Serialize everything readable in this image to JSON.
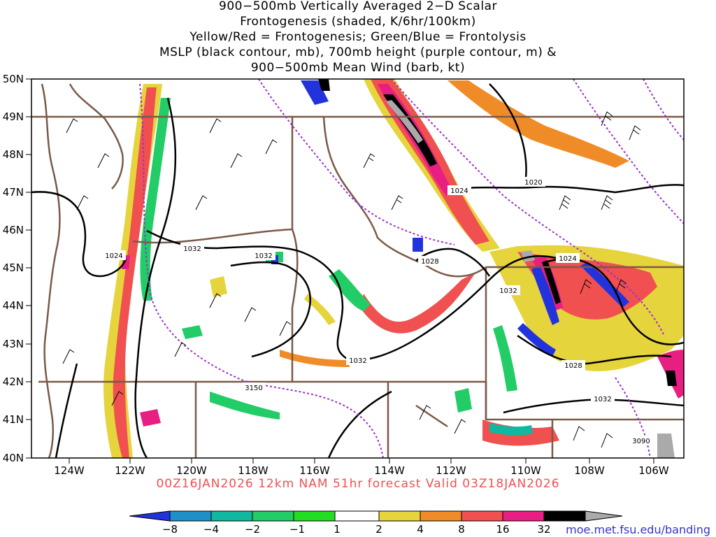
{
  "title_lines": [
    "900−500mb Vertically Averaged 2−D Scalar",
    "Frontogenesis (shaded, K/6hr/100km)",
    "Yellow/Red = Frontogenesis;  Green/Blue = Frontolysis",
    "MSLP (black contour, mb), 700mb height (purple contour, m) &",
    "900−500mb Mean Wind (barb, kt)"
  ],
  "lat_labels": [
    "50N",
    "49N",
    "48N",
    "47N",
    "46N",
    "45N",
    "44N",
    "43N",
    "42N",
    "41N",
    "40N"
  ],
  "lon_labels": [
    "124W",
    "122W",
    "120W",
    "118W",
    "116W",
    "114W",
    "112W",
    "110W",
    "108W",
    "106W"
  ],
  "contour_labels": [
    "1024",
    "1032",
    "1032",
    "1028",
    "1032",
    "1024",
    "1020",
    "1024",
    "1028",
    "1032",
    "1032",
    "3150",
    "3090"
  ],
  "forecast_line": "00Z16JAN2026 12km NAM 51hr forecast Valid 03Z18JAN2026",
  "colorbar": {
    "ticks": [
      "−8",
      "−4",
      "−2",
      "−1",
      "1",
      "2",
      "4",
      "8",
      "16",
      "32"
    ],
    "colors": [
      "#2233dd",
      "#1e90c8",
      "#10b8a0",
      "#22cc66",
      "#22dd22",
      "#ffffff",
      "#e6d43c",
      "#f08c28",
      "#f05050",
      "#e81e82",
      "#000000",
      "#aaaaaa"
    ]
  },
  "credit": "moe.met.fsu.edu/banding"
}
